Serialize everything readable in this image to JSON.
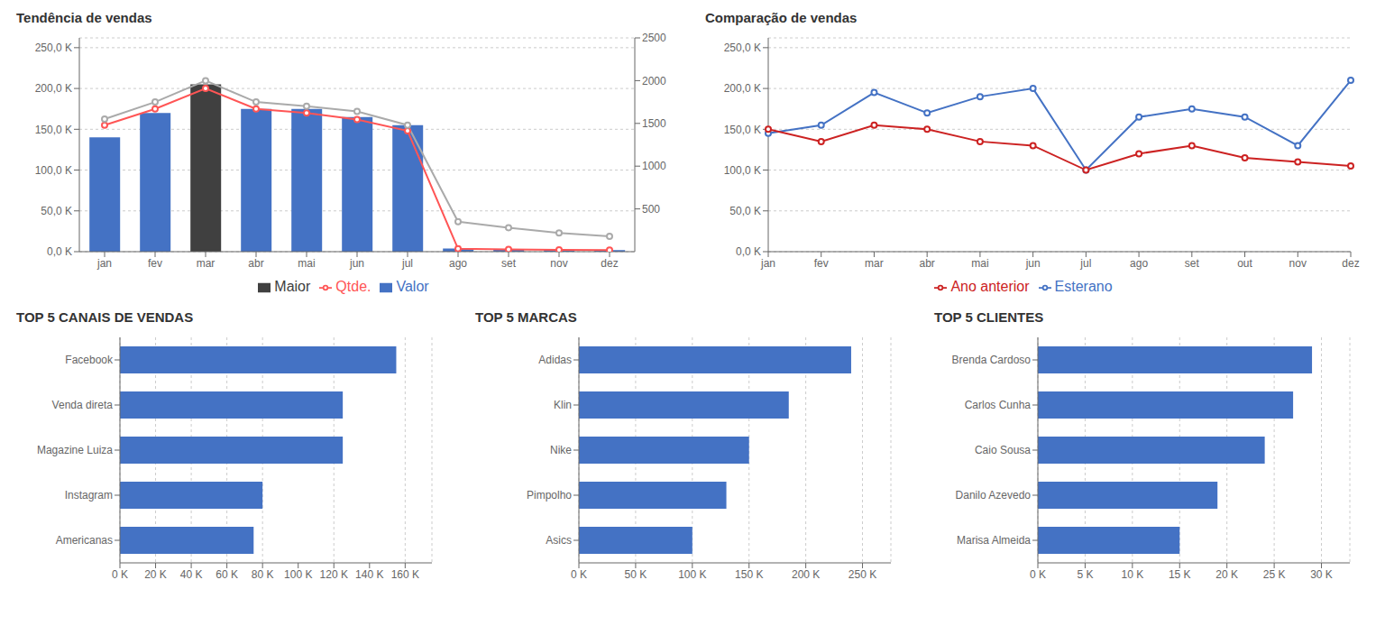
{
  "chart_data": [
    {
      "type": "bar",
      "title": "Tendência de vendas",
      "categories": [
        "jan",
        "fev",
        "mar",
        "abr",
        "mai",
        "jun",
        "jul",
        "ago",
        "set",
        "nov",
        "dez"
      ],
      "series": [
        {
          "name": "Valor",
          "type": "bar",
          "color": "#4472C4",
          "values": [
            140000,
            170000,
            null,
            175000,
            175000,
            165000,
            155000,
            4000,
            3000,
            2500,
            2000
          ]
        },
        {
          "name": "Maior",
          "type": "bar",
          "color": "#404040",
          "values": [
            null,
            null,
            205000,
            null,
            null,
            null,
            null,
            null,
            null,
            null,
            null
          ]
        },
        {
          "name": "Qtde.",
          "type": "line",
          "color": "#FF5555",
          "marker": "circle",
          "values": [
            155000,
            175000,
            200000,
            175000,
            170000,
            162000,
            148000,
            3500,
            2800,
            2200,
            1800
          ]
        },
        {
          "type": "line",
          "color": "#AAAAAA",
          "marker": "circle",
          "axis": "y2",
          "values": [
            1550,
            1750,
            2000,
            1750,
            1700,
            1640,
            1480,
            350,
            280,
            220,
            180
          ]
        }
      ],
      "stacked": true,
      "ylim": [
        0,
        262000
      ],
      "yticks": [
        {
          "value": 0,
          "label": "0,0 K"
        },
        {
          "value": 50000,
          "label": "50,0 K"
        },
        {
          "value": 100000,
          "label": "100,0 K"
        },
        {
          "value": 150000,
          "label": "150,0 K"
        },
        {
          "value": 200000,
          "label": "200,0 K"
        },
        {
          "value": 250000,
          "label": "250,0 K"
        }
      ],
      "y2lim": [
        0,
        2500
      ],
      "y2ticks": [
        500,
        1000,
        1500,
        2000,
        2500
      ],
      "grid": true,
      "legend": "bottom"
    },
    {
      "type": "line",
      "title": "Comparação de vendas",
      "categories": [
        "jan",
        "fev",
        "mar",
        "abr",
        "mai",
        "jun",
        "jul",
        "ago",
        "set",
        "out",
        "nov",
        "dez"
      ],
      "series": [
        {
          "name": "Esterano",
          "color": "#4472C4",
          "marker": "circle",
          "values": [
            145000,
            155000,
            195000,
            170000,
            190000,
            200000,
            100000,
            165000,
            175000,
            165000,
            130000,
            210000
          ]
        },
        {
          "name": "Ano anterior",
          "color": "#CC2222",
          "marker": "circle",
          "values": [
            150000,
            135000,
            155000,
            150000,
            135000,
            130000,
            100000,
            120000,
            130000,
            115000,
            110000,
            105000
          ]
        }
      ],
      "ylim": [
        0,
        262000
      ],
      "yticks": [
        {
          "value": 0,
          "label": "0,0 K"
        },
        {
          "value": 50000,
          "label": "50,0 K"
        },
        {
          "value": 100000,
          "label": "100,0 K"
        },
        {
          "value": 150000,
          "label": "150,0 K"
        },
        {
          "value": 200000,
          "label": "200,0 K"
        },
        {
          "value": 250000,
          "label": "250,0 K"
        }
      ],
      "grid": true,
      "legend": "bottom"
    },
    {
      "type": "bar",
      "title": "TOP 5 CANAIS DE VENDAS",
      "orientation": "horizontal",
      "categories": [
        "Facebook",
        "Venda direta",
        "Magazine Luiza",
        "Instagram",
        "Americanas"
      ],
      "values": [
        155000,
        125000,
        125000,
        80000,
        75000
      ],
      "color": "#4472C4",
      "xlim": [
        0,
        175000
      ],
      "xticks": [
        {
          "value": 0,
          "label": "0 K"
        },
        {
          "value": 20000,
          "label": "20 K"
        },
        {
          "value": 40000,
          "label": "40 K"
        },
        {
          "value": 60000,
          "label": "60 K"
        },
        {
          "value": 80000,
          "label": "80 K"
        },
        {
          "value": 100000,
          "label": "100 K"
        },
        {
          "value": 120000,
          "label": "120 K"
        },
        {
          "value": 140000,
          "label": "140 K"
        },
        {
          "value": 160000,
          "label": "160 K"
        }
      ],
      "grid": true
    },
    {
      "type": "bar",
      "title": "TOP 5 MARCAS",
      "orientation": "horizontal",
      "categories": [
        "Adidas",
        "Klin",
        "Nike",
        "Pimpolho",
        "Asics"
      ],
      "values": [
        240000,
        185000,
        150000,
        130000,
        100000
      ],
      "color": "#4472C4",
      "xlim": [
        0,
        275000
      ],
      "xticks": [
        {
          "value": 0,
          "label": "0 K"
        },
        {
          "value": 50000,
          "label": "50 K"
        },
        {
          "value": 100000,
          "label": "100 K"
        },
        {
          "value": 150000,
          "label": "150 K"
        },
        {
          "value": 200000,
          "label": "200 K"
        },
        {
          "value": 250000,
          "label": "250 K"
        }
      ],
      "grid": true
    },
    {
      "type": "bar",
      "title": "TOP 5 CLIENTES",
      "orientation": "horizontal",
      "categories": [
        "Brenda Cardoso",
        "Carlos Cunha",
        "Caio Sousa",
        "Danilo Azevedo",
        "Marisa Almeida"
      ],
      "values": [
        29000,
        27000,
        24000,
        19000,
        15000
      ],
      "color": "#4472C4",
      "xlim": [
        0,
        33000
      ],
      "xticks": [
        {
          "value": 0,
          "label": "0 K"
        },
        {
          "value": 5000,
          "label": "5 K"
        },
        {
          "value": 10000,
          "label": "10 K"
        },
        {
          "value": 15000,
          "label": "15 K"
        },
        {
          "value": 20000,
          "label": "20 K"
        },
        {
          "value": 25000,
          "label": "25 K"
        },
        {
          "value": 30000,
          "label": "30 K"
        }
      ],
      "grid": true
    }
  ]
}
